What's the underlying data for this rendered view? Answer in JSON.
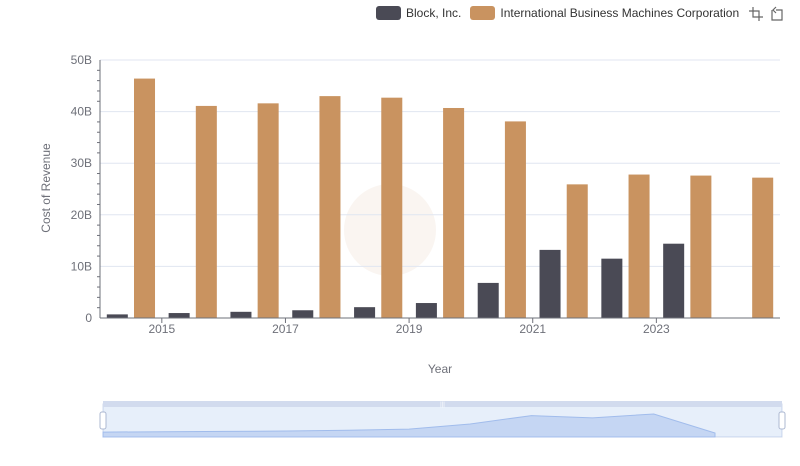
{
  "chart_data": {
    "type": "bar",
    "title": "",
    "xlabel": "Year",
    "ylabel": "Cost of Revenue",
    "categories": [
      "2014",
      "2015",
      "2016",
      "2017",
      "2018",
      "2019",
      "2020",
      "2021",
      "2022",
      "2023",
      "2024"
    ],
    "x_tick_labels": [
      "2015",
      "2017",
      "2019",
      "2021",
      "2023"
    ],
    "y_tick_labels": [
      "0",
      "10B",
      "20B",
      "30B",
      "40B",
      "50B"
    ],
    "ylim": [
      0,
      50000000000
    ],
    "grid": true,
    "legend_position": "top-right",
    "series": [
      {
        "name": "Block, Inc.",
        "color": "#4a4a55",
        "values": [
          700000000,
          960000000,
          1200000000,
          1500000000,
          2100000000,
          2900000000,
          6800000000,
          13200000000,
          11500000000,
          14400000000,
          null
        ]
      },
      {
        "name": "International Business Machines Corporation",
        "color": "#c99360",
        "values": [
          46400000000,
          41100000000,
          41600000000,
          43000000000,
          42700000000,
          40700000000,
          38100000000,
          25900000000,
          27800000000,
          27600000000,
          27200000000
        ]
      }
    ]
  },
  "toolbox": {
    "zoom_icon": "zoom-icon",
    "reset_icon": "zoom-reset-icon"
  },
  "slider": {
    "handle_left": "slider-handle-left",
    "handle_right": "slider-handle-right"
  }
}
